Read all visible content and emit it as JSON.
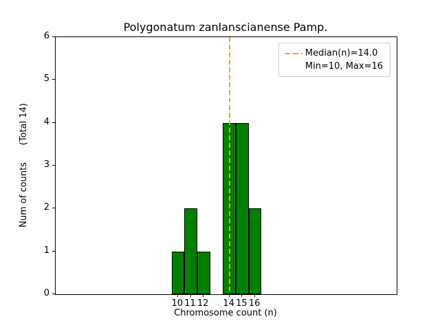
{
  "chart_data": {
    "type": "bar",
    "title": "Polygonatum zanlanscianense Pamp.",
    "xlabel": "Chromosome count (n)",
    "ylabel": "Num of counts      (Total 14)",
    "categories": [
      10,
      11,
      12,
      14,
      15,
      16
    ],
    "values": [
      1,
      2,
      1,
      4,
      4,
      2
    ],
    "total_counts": 14,
    "bar_color": "#008000",
    "bar_edge_color": "#000000",
    "xlim": [
      0.5,
      27
    ],
    "ylim": [
      0,
      6
    ],
    "yticks": [
      0,
      1,
      2,
      3,
      4,
      5,
      6
    ],
    "grid": false,
    "median_line": {
      "x": 14,
      "color": "#ffa500",
      "style": "dashed"
    },
    "legend_position": "upper right",
    "legend": [
      {
        "sample": "dashed-orange-line",
        "label": "Median(n)=14.0"
      },
      {
        "sample": "none",
        "label": "Min=10, Max=16"
      }
    ]
  }
}
